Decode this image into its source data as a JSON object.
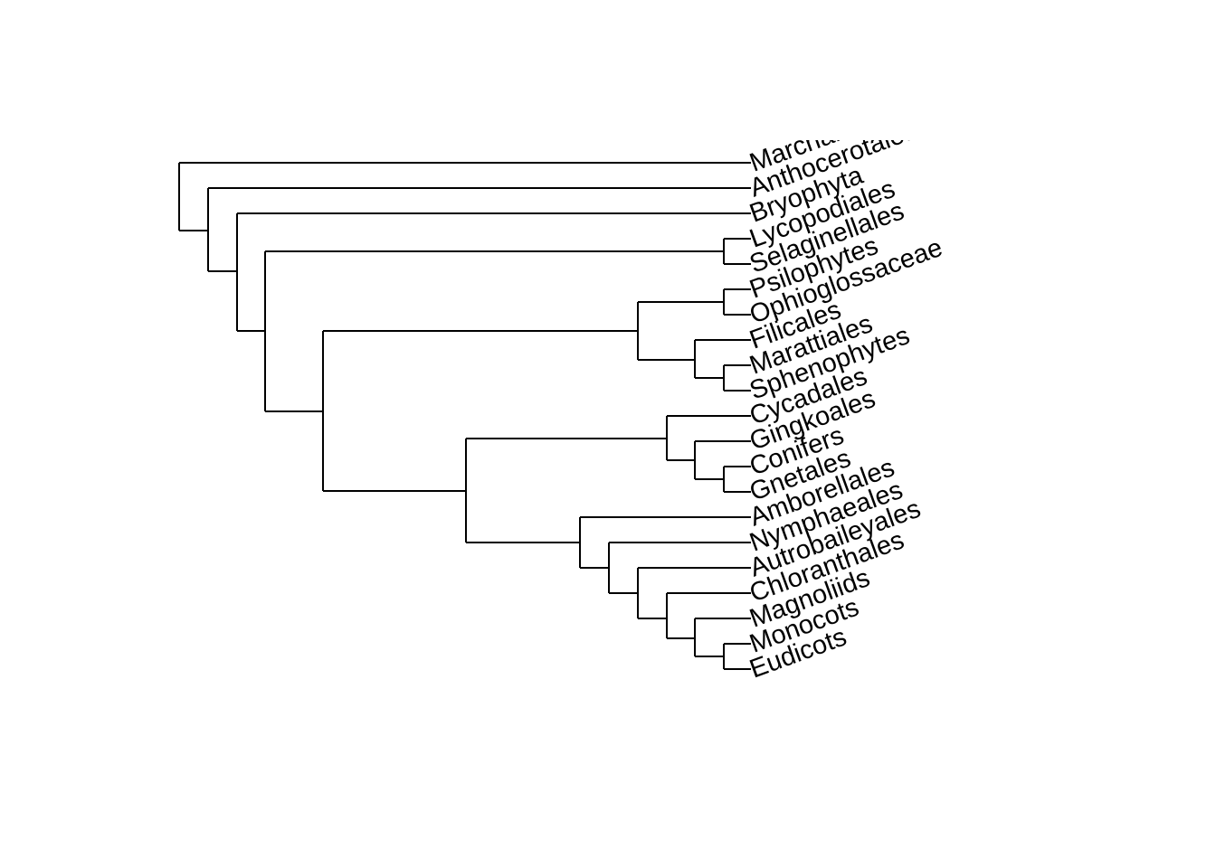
{
  "tree": {
    "leaves": [
      "Marchantiales",
      "Anthocerotales",
      "Bryophyta",
      "Lycopodiales",
      "Selaginellales",
      "Psilophytes",
      "Ophioglossaceae",
      "Filicales",
      "Marattiales",
      "Sphenophytes",
      "Cycadales",
      "Gingkoales",
      "Conifers",
      "Gnetales",
      "Amborellales",
      "Nymphaeales",
      "Autrobaileyales",
      "Chloranthales",
      "Magnoliids",
      "Monocots",
      "Eudicots"
    ]
  }
}
